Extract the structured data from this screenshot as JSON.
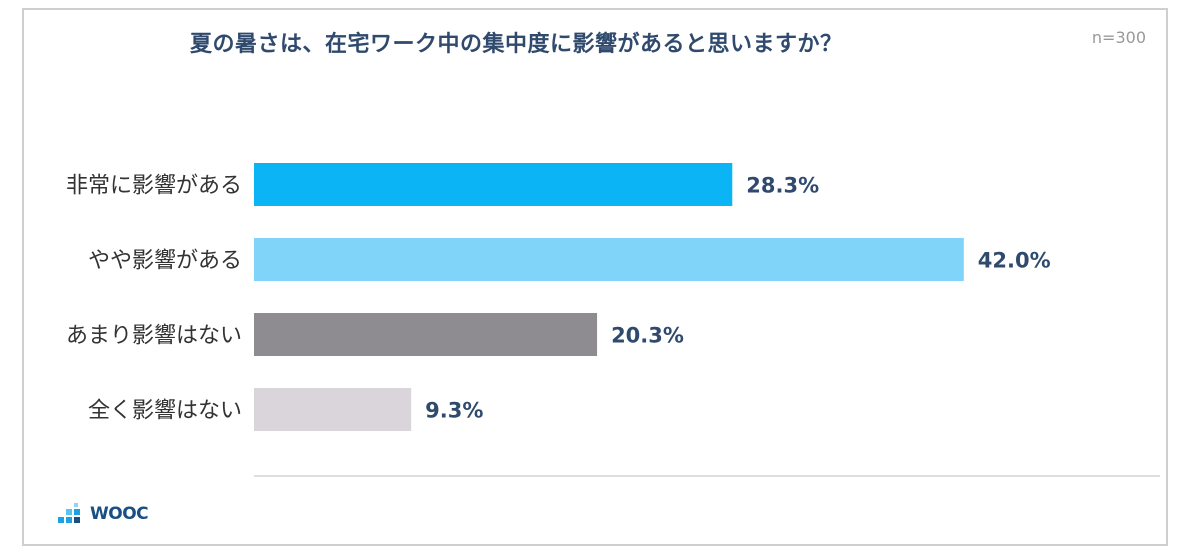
{
  "chart_data": {
    "type": "bar",
    "orientation": "horizontal",
    "title": "夏の暑さは、在宅ワーク中の集中度に影響があると思いますか？",
    "sample_size": "n=300",
    "categories": [
      "非常に影響がある",
      "やや影響がある",
      "あまり影響はない",
      "全く影響はない"
    ],
    "values": [
      28.3,
      42.0,
      20.3,
      9.3
    ],
    "value_labels": [
      "28.3%",
      "42.0%",
      "20.3%",
      "9.3%"
    ],
    "colors": [
      "#0bb4f5",
      "#80d4f9",
      "#8e8b91",
      "#d9d5da"
    ],
    "xlim": [
      0,
      100
    ],
    "grid": false,
    "legend": "none"
  },
  "branding": {
    "logo_text": "WOOC",
    "logo_colors": [
      "#1ca3e6",
      "#1a4f86"
    ]
  }
}
